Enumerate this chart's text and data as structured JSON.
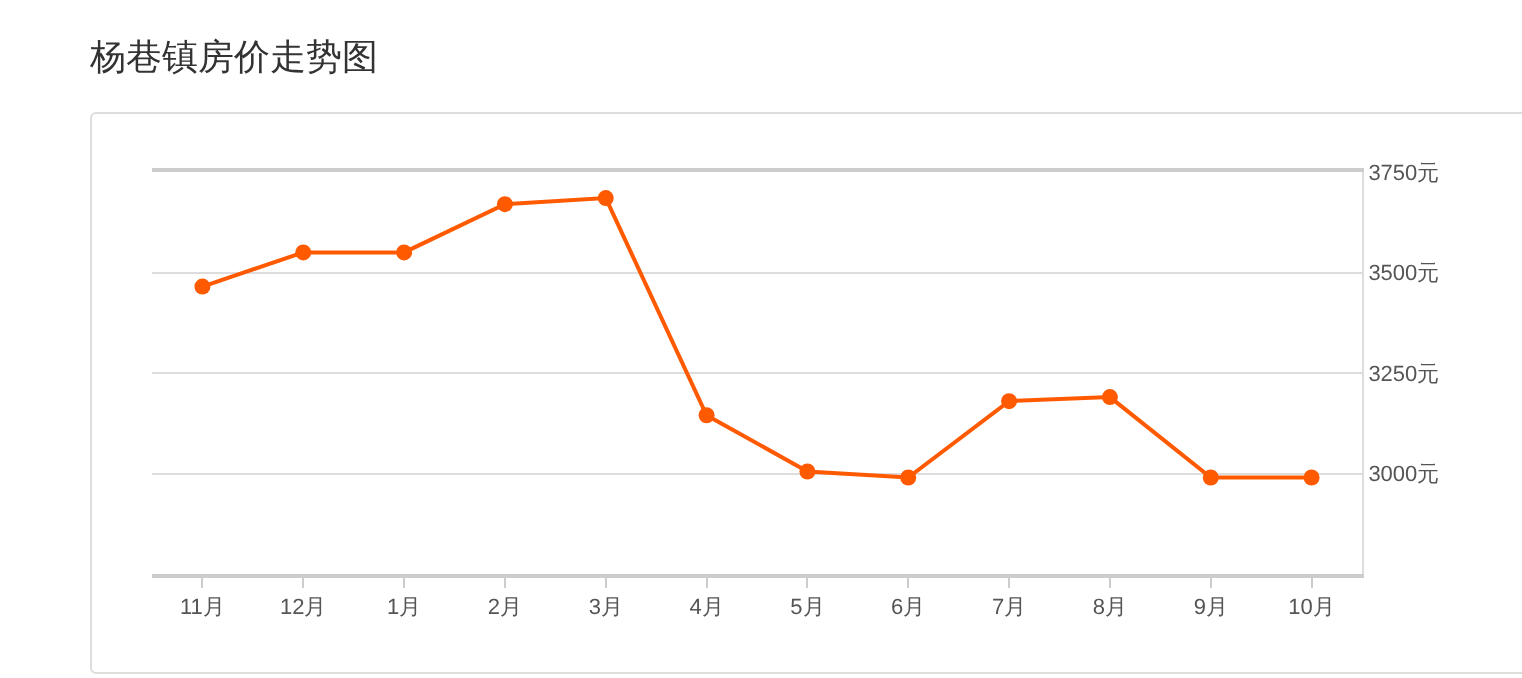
{
  "chart_data": {
    "type": "line",
    "title": "杨巷镇房价走势图",
    "categories": [
      "11月",
      "12月",
      "1月",
      "2月",
      "3月",
      "4月",
      "5月",
      "6月",
      "7月",
      "8月",
      "9月",
      "10月"
    ],
    "series": [
      {
        "color": "#ff5a00",
        "values": [
          3465,
          3550,
          3550,
          3670,
          3685,
          3145,
          3005,
          2990,
          3180,
          3190,
          2990,
          2990
        ]
      }
    ],
    "ylim": [
      2750,
      3750
    ],
    "yticks": [
      {
        "value": 3000,
        "label": "3000元"
      },
      {
        "value": 3250,
        "label": "3250元"
      },
      {
        "value": 3500,
        "label": "3500元"
      },
      {
        "value": 3750,
        "label": "3750元"
      }
    ],
    "grid": "y",
    "marker": "circle",
    "line_style": "solid"
  }
}
